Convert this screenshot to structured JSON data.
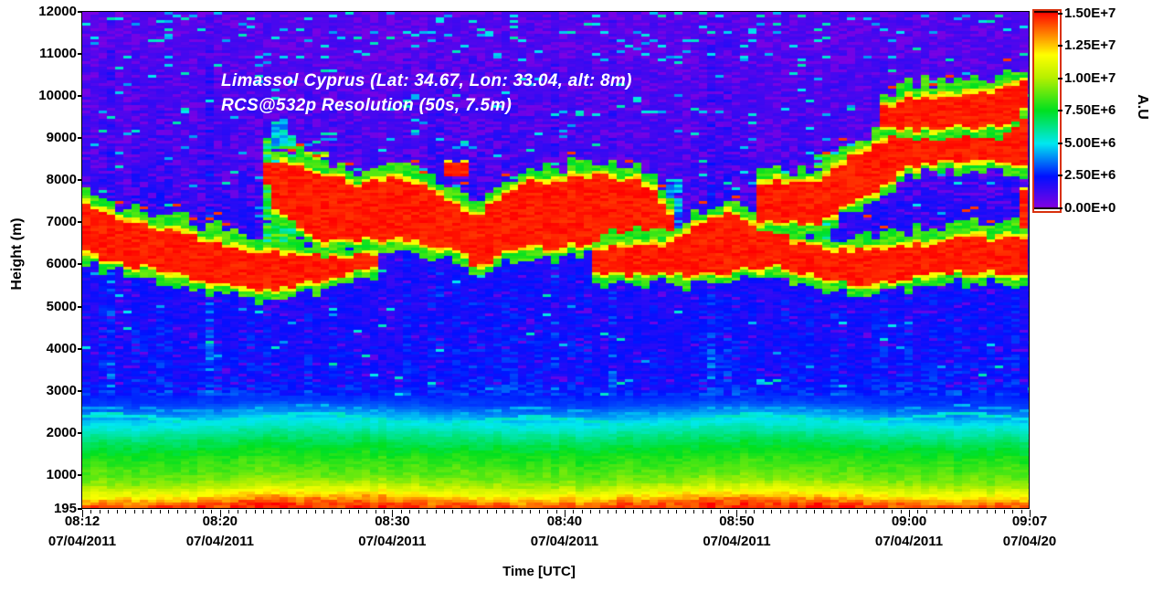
{
  "annotation": {
    "line1": "Limassol Cyprus (Lat: 34.67, Lon: 33.04, alt: 8m)",
    "line2": "RCS@532p Resolution (50s, 7.5m)",
    "color": "#FFFFFF"
  },
  "x_axis": {
    "label": "Time [UTC]",
    "minor_tick_step_min": 0.5,
    "ticks": [
      {
        "minute": 0,
        "time": "08:12",
        "date": "07/04/2011"
      },
      {
        "minute": 8,
        "time": "08:20",
        "date": "07/04/2011"
      },
      {
        "minute": 18,
        "time": "08:30",
        "date": "07/04/2011"
      },
      {
        "minute": 28,
        "time": "08:40",
        "date": "07/04/2011"
      },
      {
        "minute": 38,
        "time": "08:50",
        "date": "07/04/2011"
      },
      {
        "minute": 48,
        "time": "09:00",
        "date": "07/04/2011"
      },
      {
        "minute": 55,
        "time": "09:07",
        "date": "07/04/20"
      }
    ]
  },
  "y_axis": {
    "label": "Height (m)",
    "ticks": [
      {
        "value": 12000,
        "label": "12000"
      },
      {
        "value": 11000,
        "label": "11000"
      },
      {
        "value": 10000,
        "label": "10000"
      },
      {
        "value": 9000,
        "label": "9000"
      },
      {
        "value": 8000,
        "label": "8000"
      },
      {
        "value": 7000,
        "label": "7000"
      },
      {
        "value": 6000,
        "label": "6000"
      },
      {
        "value": 5000,
        "label": "5000"
      },
      {
        "value": 4000,
        "label": "4000"
      },
      {
        "value": 3000,
        "label": "3000"
      },
      {
        "value": 2000,
        "label": "2000"
      },
      {
        "value": 1000,
        "label": "1000"
      },
      {
        "value": 195,
        "label": "195"
      }
    ]
  },
  "colorbar": {
    "label": "A.U",
    "min": 0,
    "max": 15000000,
    "border_color": "#D8300C",
    "ticks": [
      "1.50E+7",
      "1.25E+7",
      "1.00E+7",
      "7.50E+6",
      "5.00E+6",
      "2.50E+6",
      "0.00E+0"
    ]
  },
  "chart_data": {
    "type": "heatmap",
    "title": "Limassol Cyprus (Lat: 34.67, Lon: 33.04, alt: 8m) RCS@532p Resolution (50s, 7.5m)",
    "xlabel": "Time [UTC]",
    "ylabel": "Height (m)",
    "value_unit": "A.U",
    "x_unit": "minutes after 08:12 UTC 07/04/2011",
    "y_unit": "km",
    "x_range": [
      0,
      55
    ],
    "y_range_km": [
      0.195,
      12.0
    ],
    "value_range": [
      0,
      15000000
    ],
    "colormap_stops": [
      [
        0.0,
        "#8A00E0"
      ],
      [
        0.167,
        "#0010FF"
      ],
      [
        0.333,
        "#00E8F0"
      ],
      [
        0.5,
        "#00E020"
      ],
      [
        0.667,
        "#B8F000"
      ],
      [
        0.78,
        "#FFFF00"
      ],
      [
        0.875,
        "#FF9000"
      ],
      [
        1.0,
        "#FF0000"
      ]
    ],
    "background_profile": [
      [
        0.195,
        14600000
      ],
      [
        0.27,
        14200000
      ],
      [
        0.35,
        13600000
      ],
      [
        0.45,
        12600000
      ],
      [
        0.55,
        11600000
      ],
      [
        0.65,
        10800000
      ],
      [
        0.8,
        9600000
      ],
      [
        1.0,
        8800000
      ],
      [
        1.3,
        8200000
      ],
      [
        1.6,
        7400000
      ],
      [
        1.85,
        6600000
      ],
      [
        2.05,
        5800000
      ],
      [
        2.25,
        5000000
      ],
      [
        2.45,
        4000000
      ],
      [
        2.7,
        3000000
      ],
      [
        3.2,
        2400000
      ],
      [
        4.5,
        2200000
      ],
      [
        5.5,
        2100000
      ],
      [
        6.5,
        2000000
      ],
      [
        7.5,
        1800000
      ],
      [
        8.5,
        1500000
      ],
      [
        10.0,
        1300000
      ],
      [
        12.0,
        1100000
      ]
    ],
    "cyan_layer": {
      "height_km": 2.32,
      "value": 5300000
    },
    "cloud_bands": [
      {
        "name": "descending-band",
        "points": [
          [
            0,
            6.35,
            7.45
          ],
          [
            2,
            6.1,
            7.1
          ],
          [
            4,
            5.95,
            6.9
          ],
          [
            6,
            5.8,
            6.7
          ],
          [
            8,
            5.6,
            6.5
          ],
          [
            10,
            5.45,
            6.25
          ],
          [
            12,
            5.55,
            6.25
          ],
          [
            13.5,
            5.7,
            6.3
          ],
          [
            15,
            5.85,
            6.2
          ],
          [
            17,
            6.0,
            6.3
          ]
        ]
      },
      {
        "name": "mid-band",
        "points": [
          [
            11,
            7.4,
            8.0
          ],
          [
            12.5,
            7.0,
            8.35
          ],
          [
            14,
            6.6,
            8.1
          ],
          [
            16,
            6.65,
            7.9
          ],
          [
            18,
            6.7,
            8.0
          ],
          [
            20,
            6.55,
            7.85
          ],
          [
            22,
            6.3,
            7.4
          ],
          [
            23,
            6.0,
            7.1
          ],
          [
            24.5,
            6.35,
            7.7
          ],
          [
            26,
            6.45,
            7.95
          ],
          [
            28,
            6.5,
            8.0
          ],
          [
            30,
            6.55,
            8.1
          ],
          [
            32,
            6.55,
            8.0
          ],
          [
            33.5,
            6.45,
            7.6
          ],
          [
            34.3,
            6.5,
            7.1
          ]
        ]
      },
      {
        "name": "low-band",
        "points": [
          [
            29.5,
            5.85,
            6.35
          ],
          [
            32,
            5.8,
            6.4
          ],
          [
            34,
            5.85,
            6.5
          ],
          [
            35,
            5.8,
            6.7
          ],
          [
            36,
            5.8,
            7.0
          ],
          [
            37.5,
            5.9,
            7.2
          ],
          [
            39,
            6.0,
            6.9
          ],
          [
            40.5,
            6.0,
            6.7
          ],
          [
            41.5,
            5.9,
            6.5
          ],
          [
            43,
            5.7,
            6.35
          ],
          [
            45,
            5.6,
            6.3
          ],
          [
            47,
            5.65,
            6.4
          ],
          [
            49,
            5.8,
            6.5
          ],
          [
            51,
            5.9,
            6.6
          ],
          [
            53,
            5.9,
            6.6
          ],
          [
            55,
            5.85,
            6.65
          ]
        ]
      },
      {
        "name": "rising-band",
        "points": [
          [
            39,
            7.1,
            7.9
          ],
          [
            41,
            7.05,
            7.95
          ],
          [
            43,
            7.1,
            8.0
          ],
          [
            44.5,
            7.5,
            8.5
          ],
          [
            46,
            7.8,
            8.8
          ],
          [
            48,
            8.35,
            9.25
          ],
          [
            50,
            8.5,
            9.4
          ],
          [
            52,
            8.55,
            9.5
          ],
          [
            54,
            8.5,
            9.6
          ],
          [
            55,
            8.4,
            9.7
          ]
        ]
      },
      {
        "name": "top-band",
        "points": [
          [
            46.5,
            9.35,
            9.7
          ],
          [
            48,
            9.25,
            9.95
          ],
          [
            50,
            9.3,
            10.0
          ],
          [
            52,
            9.3,
            10.05
          ],
          [
            54,
            9.45,
            10.2
          ],
          [
            55,
            9.9,
            10.55
          ]
        ]
      }
    ],
    "red_patches": [
      [
        10.6,
        12.0,
        7.95,
        8.45
      ],
      [
        20.8,
        22.3,
        8.15,
        8.4
      ],
      [
        54.2,
        55.0,
        6.95,
        7.75
      ]
    ],
    "plumes": [
      [
        10.5,
        12.3,
        6.3,
        9.0,
        7200000
      ],
      [
        12.8,
        14.3,
        8.0,
        8.7,
        8500000
      ],
      [
        42.3,
        43.6,
        5.9,
        8.6,
        7000000
      ],
      [
        33.8,
        34.9,
        6.9,
        8.0,
        4300000
      ],
      [
        10.8,
        12.0,
        8.9,
        9.4,
        4800000
      ]
    ],
    "noise": {
      "speckle_purple_chance_high": 0.26,
      "speckle_cyan_chance_high": 0.035,
      "speckle_purple_chance_mid": 0.05,
      "column_variation_high": 0.24,
      "column_variation_low": 0.06,
      "cell_variation_high": 0.5,
      "cell_variation_low": 0.09,
      "bl_wave_amplitude_km": 0.08
    }
  }
}
